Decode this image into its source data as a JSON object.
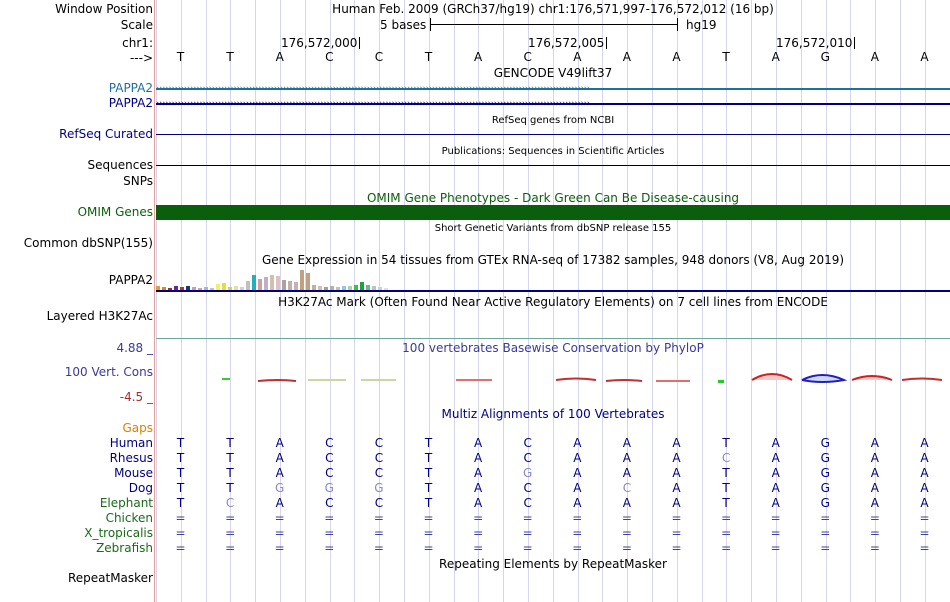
{
  "header": {
    "window_position_label": "Window Position",
    "window_position_value": "Human Feb. 2009 (GRCh37/hg19)   chr1:176,571,997-176,572,012 (16 bp)",
    "scale_label": "Scale",
    "scale_text": "5 bases",
    "scale_assembly": "hg19",
    "chrom_label": "chr1:",
    "coords": [
      "176,572,000",
      "176,572,005",
      "176,572,010"
    ],
    "strand_label": "--->"
  },
  "reference_bases": [
    "T",
    "T",
    "A",
    "C",
    "C",
    "T",
    "A",
    "C",
    "A",
    "A",
    "A",
    "T",
    "A",
    "G",
    "A",
    "A"
  ],
  "tracks": {
    "gencode_title": "GENCODE V49lift37",
    "gencode_genes": [
      "PAPPA2",
      "PAPPA2"
    ],
    "refseq_label": "RefSeq Curated",
    "refseq_title": "RefSeq genes from NCBI",
    "sequences_label": "Sequences",
    "sequences_title": "Publications: Sequences in Scientific Articles",
    "snps_label": "SNPs",
    "omim_title": "OMIM Gene Phenotypes - Dark Green Can Be Disease-causing",
    "omim_label": "OMIM Genes",
    "dbsnp_title": "Short Genetic Variants from dbSNP release 155",
    "dbsnp_label": "Common dbSNP(155)",
    "gtex_title": "Gene Expression in 54 tissues from GTEx RNA-seq of 17382 samples, 948 donors (V8, Aug 2019)",
    "gtex_label": "PAPPA2",
    "h3k27ac_title": "H3K27Ac Mark (Often Found Near Active Regulatory Elements) on 7 cell lines from ENCODE",
    "h3k27ac_label": "Layered H3K27Ac",
    "phylop_title": "100 vertebrates Basewise Conservation by PhyloP",
    "phylop_label": "100 Vert. Cons",
    "phylop_max": "4.88 _",
    "phylop_min": "-4.5 _",
    "multiz_title": "Multiz Alignments of 100 Vertebrates",
    "gaps_label": "Gaps",
    "repeatmasker_label": "RepeatMasker",
    "repeatmasker_title": "Repeating Elements by RepeatMasker"
  },
  "alignment": [
    {
      "species": "Human",
      "bases": [
        "T",
        "T",
        "A",
        "C",
        "C",
        "T",
        "A",
        "C",
        "A",
        "A",
        "A",
        "T",
        "A",
        "G",
        "A",
        "A"
      ]
    },
    {
      "species": "Rhesus",
      "bases": [
        "T",
        "T",
        "A",
        "C",
        "C",
        "T",
        "A",
        "C",
        "A",
        "A",
        "A",
        "C",
        "A",
        "G",
        "A",
        "A"
      ]
    },
    {
      "species": "Mouse",
      "bases": [
        "T",
        "T",
        "A",
        "C",
        "C",
        "T",
        "A",
        "G",
        "A",
        "A",
        "A",
        "T",
        "A",
        "G",
        "A",
        "A"
      ]
    },
    {
      "species": "Dog",
      "bases": [
        "T",
        "T",
        "G",
        "G",
        "G",
        "T",
        "A",
        "C",
        "A",
        "C",
        "A",
        "T",
        "A",
        "G",
        "A",
        "A"
      ]
    },
    {
      "species": "Elephant",
      "bases": [
        "T",
        "C",
        "A",
        "C",
        "C",
        "T",
        "A",
        "C",
        "A",
        "A",
        "A",
        "T",
        "A",
        "G",
        "A",
        "A"
      ]
    },
    {
      "species": "Chicken",
      "bases": [
        "=",
        "=",
        "=",
        "=",
        "=",
        "=",
        "=",
        "=",
        "=",
        "=",
        "=",
        "=",
        "=",
        "=",
        "=",
        "="
      ]
    },
    {
      "species": "X_tropicalis",
      "bases": [
        "=",
        "=",
        "=",
        "=",
        "=",
        "=",
        "=",
        "=",
        "=",
        "=",
        "=",
        "=",
        "=",
        "=",
        "=",
        "="
      ]
    },
    {
      "species": "Zebrafish",
      "bases": [
        "=",
        "=",
        "=",
        "=",
        "=",
        "=",
        "=",
        "=",
        "=",
        "=",
        "=",
        "=",
        "=",
        "=",
        "=",
        "="
      ]
    }
  ],
  "colors": {
    "gencode": "#1f6fa0",
    "navy": "#000080",
    "omim": "#0b5e0b",
    "gaps": "#e08000",
    "phylop": "#3a3a9a",
    "axis_red": "#a03030",
    "green_species": "#1a6a1a"
  }
}
